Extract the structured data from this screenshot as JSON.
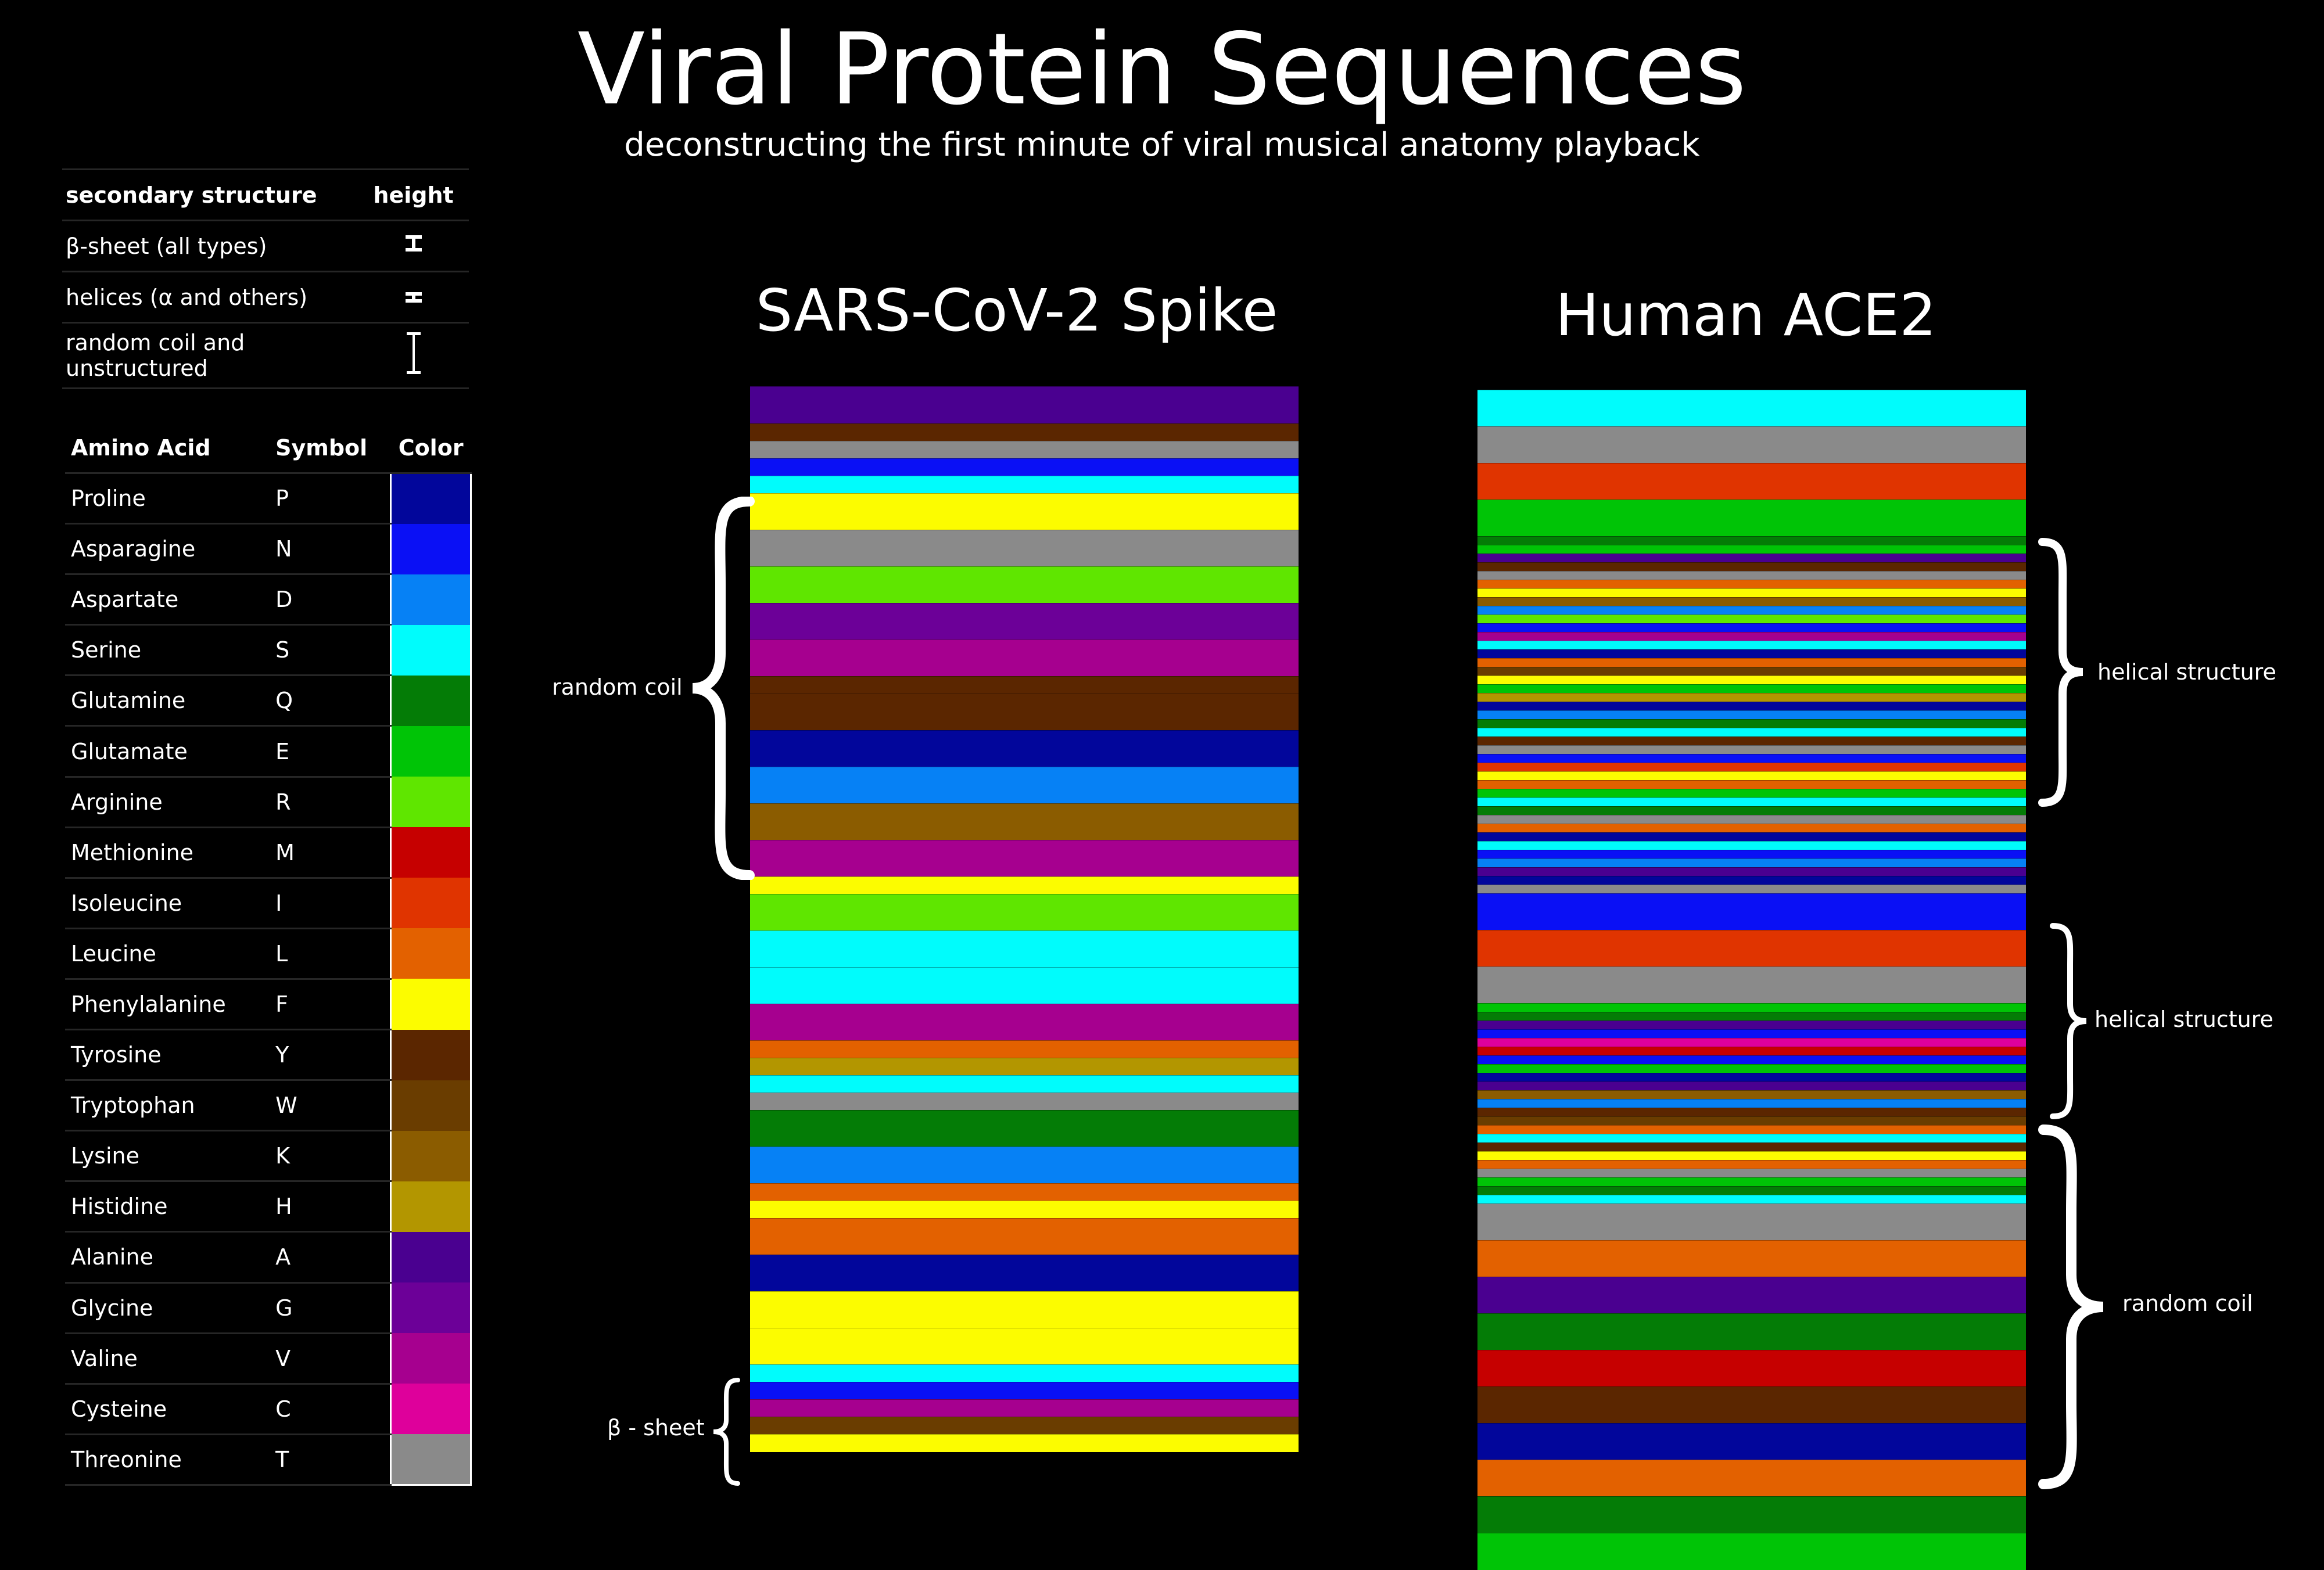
{
  "title": "Viral Protein Sequences",
  "subtitle": "deconstructing the first minute of viral musical anatomy playback",
  "secondary_structure_legend": {
    "headers": [
      "secondary structure",
      "height"
    ],
    "rows": [
      {
        "label": "β-sheet (all types)",
        "height_icon": "short-i-beam-icon"
      },
      {
        "label": "helices (α and others)",
        "height_icon": "tiny-i-beam-icon"
      },
      {
        "label": "random coil and unstructured",
        "height_icon": "tall-i-beam-icon"
      }
    ]
  },
  "amino_acid_legend": {
    "headers": [
      "Amino Acid",
      "Symbol",
      "Color"
    ],
    "rows": [
      {
        "name": "Proline",
        "symbol": "P",
        "color": "#02069b"
      },
      {
        "name": "Asparagine",
        "symbol": "N",
        "color": "#0a10f5"
      },
      {
        "name": "Aspartate",
        "symbol": "D",
        "color": "#0681f5"
      },
      {
        "name": "Serine",
        "symbol": "S",
        "color": "#00fcfc"
      },
      {
        "name": "Glutamine",
        "symbol": "Q",
        "color": "#047c06"
      },
      {
        "name": "Glutamate",
        "symbol": "E",
        "color": "#00c406"
      },
      {
        "name": "Arginine",
        "symbol": "R",
        "color": "#5fe600"
      },
      {
        "name": "Methionine",
        "symbol": "M",
        "color": "#c60000"
      },
      {
        "name": "Isoleucine",
        "symbol": "I",
        "color": "#e03400"
      },
      {
        "name": "Leucine",
        "symbol": "L",
        "color": "#e36100"
      },
      {
        "name": "Phenylalanine",
        "symbol": "F",
        "color": "#fcfc00"
      },
      {
        "name": "Tyrosine",
        "symbol": "Y",
        "color": "#5b2600"
      },
      {
        "name": "Tryptophan",
        "symbol": "W",
        "color": "#6a3d00"
      },
      {
        "name": "Lysine",
        "symbol": "K",
        "color": "#8b5c00"
      },
      {
        "name": "Histidine",
        "symbol": "H",
        "color": "#b39600"
      },
      {
        "name": "Alanine",
        "symbol": "A",
        "color": "#4a0090"
      },
      {
        "name": "Glycine",
        "symbol": "G",
        "color": "#6c0098"
      },
      {
        "name": "Valine",
        "symbol": "V",
        "color": "#a6008f"
      },
      {
        "name": "Cysteine",
        "symbol": "C",
        "color": "#de009b"
      },
      {
        "name": "Threonine",
        "symbol": "T",
        "color": "#8a8a8a"
      }
    ]
  },
  "sequences": [
    {
      "name": "SARS-CoV-2 Spike",
      "residues": [
        "A",
        "Y",
        "T",
        "N",
        "S",
        "F",
        "T",
        "R",
        "G",
        "V",
        "Y",
        "Y",
        "P",
        "D",
        "K",
        "V",
        "F",
        "R",
        "S",
        "S",
        "V",
        "L",
        "H",
        "S",
        "T",
        "Q",
        "D",
        "L",
        "F",
        "L",
        "P",
        "F",
        "F",
        "S",
        "N",
        "V",
        "W",
        "F"
      ],
      "annotations": [
        {
          "label": "random coil",
          "side": "left"
        },
        {
          "label": "β - sheet",
          "side": "left"
        }
      ]
    },
    {
      "name": "Human ACE2",
      "residues": [
        "S",
        "T",
        "I",
        "E"
      ],
      "annotations": [
        {
          "label": "helical structure",
          "side": "right"
        },
        {
          "label": "helical structure",
          "side": "right"
        },
        {
          "label": "random coil",
          "side": "right"
        }
      ]
    }
  ]
}
